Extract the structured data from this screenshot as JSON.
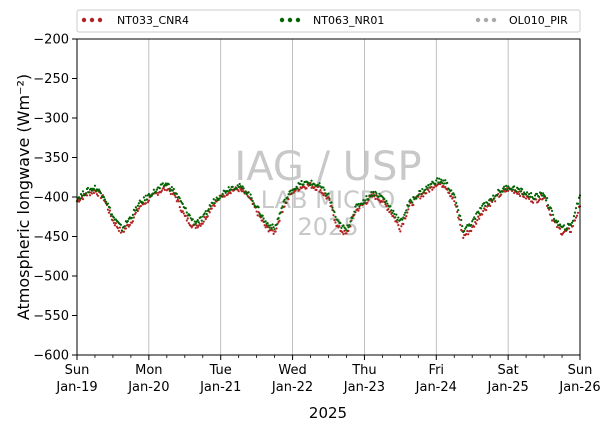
{
  "chart_data": {
    "type": "scatter",
    "xlabel": "2025",
    "ylabel": "Atmospheric longwave",
    "ylabel_unit": "(Wm⁻²)",
    "ylim": [
      -600,
      -200
    ],
    "yticks": [
      -200,
      -250,
      -300,
      -350,
      -400,
      -450,
      -500,
      -550,
      -600
    ],
    "xlim": [
      "2025-01-19",
      "2025-01-26"
    ],
    "xticks": [
      {
        "day": "Sun",
        "date": "Jan-19"
      },
      {
        "day": "Mon",
        "date": "Jan-20"
      },
      {
        "day": "Tue",
        "date": "Jan-21"
      },
      {
        "day": "Wed",
        "date": "Jan-22"
      },
      {
        "day": "Thu",
        "date": "Jan-23"
      },
      {
        "day": "Fri",
        "date": "Jan-24"
      },
      {
        "day": "Sat",
        "date": "Jan-25"
      },
      {
        "day": "Sun",
        "date": "Jan-26"
      }
    ],
    "grid": "vertical",
    "legend_position": "top",
    "watermark": {
      "line1": "IAG / USP",
      "line2": "LAB MICRO",
      "line3": "2025"
    },
    "series": [
      {
        "name": "NT033_CNR4",
        "color": "#b22222",
        "x": [
          "2025-01-19T00:00",
          "2025-01-19T03:00",
          "2025-01-19T06:00",
          "2025-01-19T09:00",
          "2025-01-19T12:00",
          "2025-01-19T15:00",
          "2025-01-19T18:00",
          "2025-01-19T21:00",
          "2025-01-20T00:00",
          "2025-01-20T03:00",
          "2025-01-20T06:00",
          "2025-01-20T09:00",
          "2025-01-20T12:00",
          "2025-01-20T15:00",
          "2025-01-20T18:00",
          "2025-01-20T21:00",
          "2025-01-21T00:00",
          "2025-01-21T03:00",
          "2025-01-21T06:00",
          "2025-01-21T09:00",
          "2025-01-21T12:00",
          "2025-01-21T15:00",
          "2025-01-21T18:00",
          "2025-01-21T21:00",
          "2025-01-22T00:00",
          "2025-01-22T03:00",
          "2025-01-22T06:00",
          "2025-01-22T09:00",
          "2025-01-22T12:00",
          "2025-01-22T15:00",
          "2025-01-22T18:00",
          "2025-01-22T21:00",
          "2025-01-23T00:00",
          "2025-01-23T03:00",
          "2025-01-23T06:00",
          "2025-01-23T09:00",
          "2025-01-23T12:00",
          "2025-01-23T15:00",
          "2025-01-23T18:00",
          "2025-01-23T21:00",
          "2025-01-24T00:00",
          "2025-01-24T03:00",
          "2025-01-24T06:00",
          "2025-01-24T09:00",
          "2025-01-24T12:00",
          "2025-01-24T15:00",
          "2025-01-24T18:00",
          "2025-01-24T21:00",
          "2025-01-25T00:00",
          "2025-01-25T03:00",
          "2025-01-25T06:00",
          "2025-01-25T09:00",
          "2025-01-25T12:00",
          "2025-01-25T15:00",
          "2025-01-25T18:00",
          "2025-01-25T21:00",
          "2025-01-26T00:00"
        ],
        "y": [
          -405,
          -397,
          -392,
          -402,
          -430,
          -445,
          -432,
          -412,
          -403,
          -394,
          -388,
          -400,
          -425,
          -438,
          -432,
          -412,
          -400,
          -392,
          -390,
          -398,
          -418,
          -438,
          -445,
          -412,
          -393,
          -387,
          -385,
          -390,
          -403,
          -438,
          -448,
          -418,
          -408,
          -398,
          -405,
          -420,
          -440,
          -412,
          -400,
          -393,
          -383,
          -385,
          -405,
          -450,
          -440,
          -420,
          -408,
          -398,
          -390,
          -393,
          -400,
          -405,
          -398,
          -430,
          -445,
          -442,
          -412
        ]
      },
      {
        "name": "NT063_NR01",
        "color": "#006400",
        "x": [
          "2025-01-19T00:00",
          "2025-01-19T03:00",
          "2025-01-19T06:00",
          "2025-01-19T09:00",
          "2025-01-19T12:00",
          "2025-01-19T15:00",
          "2025-01-19T18:00",
          "2025-01-19T21:00",
          "2025-01-20T00:00",
          "2025-01-20T03:00",
          "2025-01-20T06:00",
          "2025-01-20T09:00",
          "2025-01-20T12:00",
          "2025-01-20T15:00",
          "2025-01-20T18:00",
          "2025-01-20T21:00",
          "2025-01-21T00:00",
          "2025-01-21T03:00",
          "2025-01-21T06:00",
          "2025-01-21T09:00",
          "2025-01-21T12:00",
          "2025-01-21T15:00",
          "2025-01-21T18:00",
          "2025-01-21T21:00",
          "2025-01-22T00:00",
          "2025-01-22T03:00",
          "2025-01-22T06:00",
          "2025-01-22T09:00",
          "2025-01-22T12:00",
          "2025-01-22T15:00",
          "2025-01-22T18:00",
          "2025-01-22T21:00",
          "2025-01-23T00:00",
          "2025-01-23T03:00",
          "2025-01-23T06:00",
          "2025-01-23T09:00",
          "2025-01-23T12:00",
          "2025-01-23T15:00",
          "2025-01-23T18:00",
          "2025-01-23T21:00",
          "2025-01-24T00:00",
          "2025-01-24T03:00",
          "2025-01-24T06:00",
          "2025-01-24T09:00",
          "2025-01-24T12:00",
          "2025-01-24T15:00",
          "2025-01-24T18:00",
          "2025-01-24T21:00",
          "2025-01-25T00:00",
          "2025-01-25T03:00",
          "2025-01-25T06:00",
          "2025-01-25T09:00",
          "2025-01-25T12:00",
          "2025-01-25T15:00",
          "2025-01-25T18:00",
          "2025-01-25T21:00",
          "2025-01-26T00:00"
        ],
        "y": [
          -402,
          -393,
          -388,
          -398,
          -425,
          -440,
          -425,
          -408,
          -398,
          -390,
          -383,
          -395,
          -415,
          -432,
          -428,
          -408,
          -397,
          -388,
          -386,
          -394,
          -412,
          -432,
          -440,
          -408,
          -390,
          -383,
          -382,
          -386,
          -398,
          -432,
          -442,
          -414,
          -404,
          -394,
          -400,
          -415,
          -432,
          -408,
          -396,
          -388,
          -379,
          -381,
          -398,
          -442,
          -432,
          -414,
          -404,
          -393,
          -387,
          -390,
          -396,
          -400,
          -395,
          -424,
          -440,
          -436,
          -398
        ]
      },
      {
        "name": "OL010_PIR",
        "color": "#a9a9a9",
        "x": [],
        "y": []
      }
    ]
  }
}
